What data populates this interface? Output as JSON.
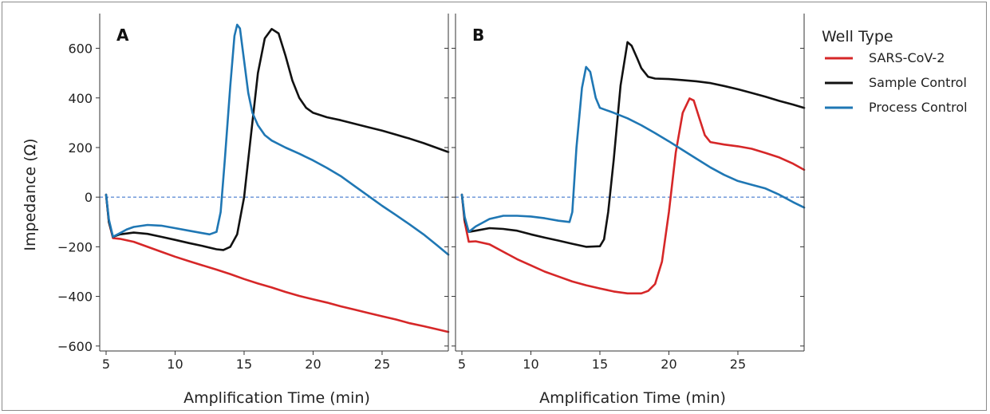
{
  "chart_data": [
    {
      "type": "line",
      "panel_label": "A",
      "xlabel": "Amplification Time (min)",
      "ylabel": "Impedance (Ω)",
      "xlim": [
        5,
        29.8
      ],
      "ylim": [
        -620,
        740
      ],
      "xticks": [
        "5",
        "10",
        "15",
        "20",
        "25"
      ],
      "yticks": [
        "600",
        "400",
        "200",
        "0",
        "−200",
        "−400",
        "−600"
      ],
      "zero_line": true,
      "series": [
        {
          "name": "SARS-CoV-2",
          "color": "#d62728",
          "points": [
            [
              5.0,
              10
            ],
            [
              5.2,
              -100
            ],
            [
              5.5,
              -165
            ],
            [
              6,
              -168
            ],
            [
              7,
              -180
            ],
            [
              8,
              -200
            ],
            [
              9,
              -220
            ],
            [
              10,
              -240
            ],
            [
              11,
              -258
            ],
            [
              12,
              -275
            ],
            [
              13,
              -292
            ],
            [
              14,
              -310
            ],
            [
              15,
              -330
            ],
            [
              16,
              -348
            ],
            [
              17,
              -364
            ],
            [
              18,
              -382
            ],
            [
              19,
              -398
            ],
            [
              20,
              -412
            ],
            [
              21,
              -425
            ],
            [
              22,
              -440
            ],
            [
              23,
              -453
            ],
            [
              24,
              -467
            ],
            [
              25,
              -480
            ],
            [
              26,
              -493
            ],
            [
              27,
              -508
            ],
            [
              28,
              -520
            ],
            [
              29,
              -533
            ],
            [
              29.8,
              -543
            ]
          ]
        },
        {
          "name": "Sample Control",
          "color": "#111111",
          "points": [
            [
              5.0,
              10
            ],
            [
              5.2,
              -100
            ],
            [
              5.5,
              -160
            ],
            [
              6,
              -150
            ],
            [
              7,
              -143
            ],
            [
              8,
              -148
            ],
            [
              9,
              -160
            ],
            [
              10,
              -172
            ],
            [
              11,
              -185
            ],
            [
              12,
              -197
            ],
            [
              13,
              -210
            ],
            [
              13.5,
              -213
            ],
            [
              14,
              -200
            ],
            [
              14.5,
              -150
            ],
            [
              15,
              0
            ],
            [
              15.5,
              250
            ],
            [
              16,
              500
            ],
            [
              16.5,
              640
            ],
            [
              17,
              678
            ],
            [
              17.5,
              660
            ],
            [
              18,
              570
            ],
            [
              18.5,
              470
            ],
            [
              19,
              400
            ],
            [
              19.5,
              360
            ],
            [
              20,
              340
            ],
            [
              21,
              322
            ],
            [
              22,
              310
            ],
            [
              23,
              296
            ],
            [
              24,
              282
            ],
            [
              25,
              268
            ],
            [
              26,
              252
            ],
            [
              27,
              236
            ],
            [
              28,
              218
            ],
            [
              29,
              198
            ],
            [
              29.8,
              182
            ]
          ]
        },
        {
          "name": "Process Control",
          "color": "#1f77b4",
          "points": [
            [
              5.0,
              10
            ],
            [
              5.2,
              -90
            ],
            [
              5.5,
              -160
            ],
            [
              6,
              -145
            ],
            [
              6.5,
              -130
            ],
            [
              7,
              -120
            ],
            [
              8,
              -112
            ],
            [
              9,
              -115
            ],
            [
              10,
              -125
            ],
            [
              11,
              -135
            ],
            [
              12,
              -145
            ],
            [
              12.5,
              -150
            ],
            [
              13,
              -140
            ],
            [
              13.3,
              -60
            ],
            [
              13.6,
              150
            ],
            [
              14,
              450
            ],
            [
              14.3,
              650
            ],
            [
              14.5,
              695
            ],
            [
              14.7,
              680
            ],
            [
              15,
              550
            ],
            [
              15.3,
              420
            ],
            [
              15.6,
              340
            ],
            [
              16,
              290
            ],
            [
              16.5,
              250
            ],
            [
              17,
              228
            ],
            [
              18,
              200
            ],
            [
              19,
              175
            ],
            [
              20,
              148
            ],
            [
              21,
              118
            ],
            [
              22,
              85
            ],
            [
              23,
              45
            ],
            [
              24,
              5
            ],
            [
              25,
              -35
            ],
            [
              26,
              -72
            ],
            [
              27,
              -110
            ],
            [
              28,
              -150
            ],
            [
              29,
              -195
            ],
            [
              29.8,
              -232
            ]
          ]
        }
      ]
    },
    {
      "type": "line",
      "panel_label": "B",
      "xlabel": "Amplification Time (min)",
      "xlim": [
        5,
        29.8
      ],
      "ylim": [
        -620,
        740
      ],
      "xticks": [
        "5",
        "10",
        "15",
        "20",
        "25"
      ],
      "zero_line": true,
      "series": [
        {
          "name": "SARS-CoV-2",
          "color": "#d62728",
          "points": [
            [
              5.0,
              10
            ],
            [
              5.2,
              -100
            ],
            [
              5.5,
              -180
            ],
            [
              6,
              -178
            ],
            [
              7,
              -190
            ],
            [
              8,
              -220
            ],
            [
              9,
              -250
            ],
            [
              10,
              -275
            ],
            [
              11,
              -300
            ],
            [
              12,
              -320
            ],
            [
              13,
              -340
            ],
            [
              14,
              -355
            ],
            [
              15,
              -368
            ],
            [
              16,
              -380
            ],
            [
              17,
              -388
            ],
            [
              18,
              -388
            ],
            [
              18.5,
              -378
            ],
            [
              19,
              -350
            ],
            [
              19.5,
              -260
            ],
            [
              20,
              -60
            ],
            [
              20.5,
              180
            ],
            [
              21,
              340
            ],
            [
              21.5,
              398
            ],
            [
              21.8,
              390
            ],
            [
              22.2,
              320
            ],
            [
              22.6,
              250
            ],
            [
              23,
              222
            ],
            [
              24,
              212
            ],
            [
              25,
              205
            ],
            [
              26,
              195
            ],
            [
              27,
              178
            ],
            [
              28,
              160
            ],
            [
              29,
              135
            ],
            [
              29.8,
              110
            ]
          ]
        },
        {
          "name": "Sample Control",
          "color": "#111111",
          "points": [
            [
              5.0,
              10
            ],
            [
              5.2,
              -90
            ],
            [
              5.5,
              -140
            ],
            [
              6,
              -135
            ],
            [
              7,
              -125
            ],
            [
              8,
              -128
            ],
            [
              9,
              -135
            ],
            [
              10,
              -150
            ],
            [
              11,
              -163
            ],
            [
              12,
              -175
            ],
            [
              13,
              -188
            ],
            [
              14,
              -200
            ],
            [
              15,
              -198
            ],
            [
              15.3,
              -170
            ],
            [
              15.6,
              -60
            ],
            [
              16,
              150
            ],
            [
              16.5,
              450
            ],
            [
              17,
              625
            ],
            [
              17.3,
              610
            ],
            [
              17.7,
              560
            ],
            [
              18,
              520
            ],
            [
              18.5,
              485
            ],
            [
              19,
              478
            ],
            [
              20,
              476
            ],
            [
              21,
              472
            ],
            [
              22,
              467
            ],
            [
              23,
              460
            ],
            [
              24,
              448
            ],
            [
              25,
              435
            ],
            [
              26,
              420
            ],
            [
              27,
              405
            ],
            [
              28,
              388
            ],
            [
              29,
              373
            ],
            [
              29.8,
              360
            ]
          ]
        },
        {
          "name": "Process Control",
          "color": "#1f77b4",
          "points": [
            [
              5.0,
              10
            ],
            [
              5.2,
              -80
            ],
            [
              5.5,
              -140
            ],
            [
              6,
              -118
            ],
            [
              7,
              -88
            ],
            [
              8,
              -75
            ],
            [
              9,
              -75
            ],
            [
              10,
              -78
            ],
            [
              11,
              -85
            ],
            [
              12,
              -95
            ],
            [
              12.8,
              -100
            ],
            [
              13,
              -60
            ],
            [
              13.3,
              200
            ],
            [
              13.7,
              440
            ],
            [
              14,
              525
            ],
            [
              14.3,
              505
            ],
            [
              14.7,
              400
            ],
            [
              15,
              360
            ],
            [
              15.5,
              350
            ],
            [
              16,
              340
            ],
            [
              17,
              318
            ],
            [
              18,
              290
            ],
            [
              19,
              258
            ],
            [
              20,
              225
            ],
            [
              21,
              190
            ],
            [
              22,
              155
            ],
            [
              23,
              120
            ],
            [
              24,
              90
            ],
            [
              25,
              65
            ],
            [
              26,
              50
            ],
            [
              27,
              35
            ],
            [
              28,
              10
            ],
            [
              29,
              -20
            ],
            [
              29.8,
              -42
            ]
          ]
        }
      ]
    }
  ],
  "legend": {
    "title": "Well Type",
    "items": [
      {
        "label": "SARS-CoV-2",
        "color": "#d62728"
      },
      {
        "label": "Sample Control",
        "color": "#111111"
      },
      {
        "label": "Process Control",
        "color": "#1f77b4"
      }
    ]
  }
}
